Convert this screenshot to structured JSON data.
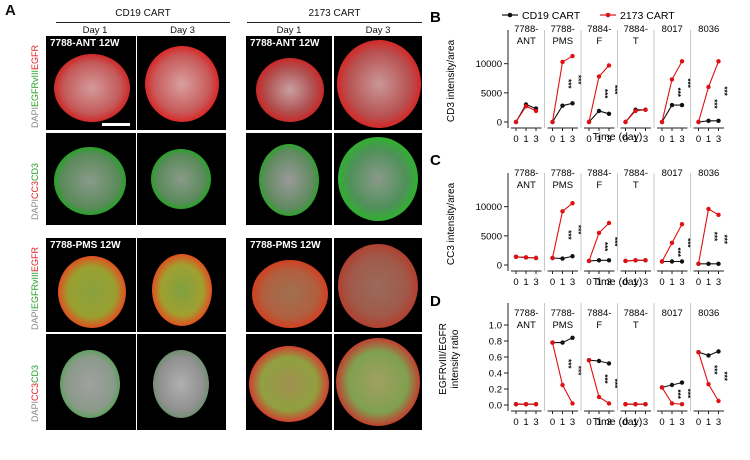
{
  "panel_a": {
    "letter": "A",
    "group_cd19": "CD19 CART",
    "group_2173": "2173 CART",
    "day1": "Day 1",
    "day3": "Day 3",
    "label_ant": "7788-ANT 12W",
    "label_pms": "7788-PMS 12W",
    "side1": {
      "p1": "DAPI",
      "p2": "EGFRvIII",
      "p3": "EGFR"
    },
    "side2": {
      "p1": "DAPI",
      "p2": "CC3",
      "p3": "CD3"
    },
    "colors": {
      "dapi": "#9a9a9a",
      "green": "#22b822",
      "red": "#e02020"
    }
  },
  "legend": {
    "cd19": "CD19 CART",
    "c2173": "2173 CART"
  },
  "colors": {
    "cd19": "#111111",
    "c2173": "#e01010"
  },
  "chart_data": [
    {
      "letter": "B",
      "type": "line",
      "ylabel": "CD3 intensity/area",
      "xlabel": "Time (day)",
      "ylim": [
        0,
        12000
      ],
      "yticks": [
        "0",
        "5000",
        "10000"
      ],
      "ytick_values": [
        0,
        5000,
        10000
      ],
      "x": [
        0,
        1,
        3
      ],
      "xtick_labels": [
        "0",
        "1",
        "3"
      ],
      "facets": [
        {
          "title": "7788-ANT",
          "cd19": [
            0,
            3000,
            2300
          ],
          "c2173": [
            0,
            2700,
            1900
          ],
          "stars": []
        },
        {
          "title": "7788-PMS",
          "cd19": [
            0,
            2800,
            3200
          ],
          "c2173": [
            0,
            10300,
            11300
          ],
          "stars": [
            "***",
            "***"
          ]
        },
        {
          "title": "7884-F",
          "cd19": [
            0,
            1900,
            1400
          ],
          "c2173": [
            0,
            7800,
            9700
          ],
          "stars": [
            "***",
            "***"
          ]
        },
        {
          "title": "7884-T",
          "cd19": [
            0,
            2100,
            2100
          ],
          "c2173": [
            0,
            1900,
            2100
          ],
          "stars": []
        },
        {
          "title": "8017",
          "cd19": [
            0,
            2900,
            2900
          ],
          "c2173": [
            0,
            7300,
            10400
          ],
          "stars": [
            "***",
            "***"
          ]
        },
        {
          "title": "8036",
          "cd19": [
            0,
            200,
            200
          ],
          "c2173": [
            0,
            6000,
            10400
          ],
          "stars": [
            "***",
            "***"
          ]
        }
      ]
    },
    {
      "letter": "C",
      "type": "line",
      "ylabel": "CC3 intensity/area",
      "xlabel": "Time (day)",
      "ylim": [
        0,
        12000
      ],
      "yticks": [
        "0",
        "5000",
        "10000"
      ],
      "ytick_values": [
        0,
        5000,
        10000
      ],
      "x": [
        0,
        1,
        3
      ],
      "xtick_labels": [
        "0",
        "1",
        "3"
      ],
      "facets": [
        {
          "title": "7788-ANT",
          "cd19": [
            1400,
            1300,
            1200
          ],
          "c2173": [
            1400,
            1300,
            1200
          ],
          "stars": []
        },
        {
          "title": "7788-PMS",
          "cd19": [
            1200,
            1100,
            1500
          ],
          "c2173": [
            1200,
            9200,
            10600
          ],
          "stars": [
            "***",
            "***"
          ]
        },
        {
          "title": "7884-F",
          "cd19": [
            700,
            800,
            800
          ],
          "c2173": [
            700,
            5500,
            7200
          ],
          "stars": [
            "***",
            "***"
          ]
        },
        {
          "title": "7884-T",
          "cd19": [
            700,
            800,
            800
          ],
          "c2173": [
            700,
            800,
            800
          ],
          "stars": []
        },
        {
          "title": "8017",
          "cd19": [
            600,
            600,
            600
          ],
          "c2173": [
            600,
            3800,
            7000
          ],
          "stars": [
            "***",
            "***"
          ]
        },
        {
          "title": "8036",
          "cd19": [
            200,
            200,
            200
          ],
          "c2173": [
            200,
            9600,
            8600
          ],
          "stars": [
            "***",
            "***"
          ]
        }
      ]
    },
    {
      "letter": "D",
      "type": "line",
      "ylabel": "EGFRvIII/EGFR",
      "ylabel2": "intensity ratio",
      "xlabel": "Time (day)",
      "ylim": [
        0,
        1.0
      ],
      "yticks": [
        "0.0",
        "0.2",
        "0.4",
        "0.6",
        "0.8",
        "1.0"
      ],
      "ytick_values": [
        0,
        0.2,
        0.4,
        0.6,
        0.8,
        1.0
      ],
      "x": [
        0,
        1,
        3
      ],
      "xtick_labels": [
        "0",
        "1",
        "3"
      ],
      "facets": [
        {
          "title": "7788-ANT",
          "cd19": [
            0.01,
            0.01,
            0.01
          ],
          "c2173": [
            0.01,
            0.01,
            0.01
          ],
          "stars": []
        },
        {
          "title": "7788-PMS",
          "cd19": [
            0.78,
            0.78,
            0.84
          ],
          "c2173": [
            0.78,
            0.25,
            0.02
          ],
          "stars": [
            "***",
            "***"
          ]
        },
        {
          "title": "7884-F",
          "cd19": [
            0.56,
            0.55,
            0.52
          ],
          "c2173": [
            0.56,
            0.1,
            0.02
          ],
          "stars": [
            "***",
            "***"
          ]
        },
        {
          "title": "7884-T",
          "cd19": [
            0.01,
            0.01,
            0.01
          ],
          "c2173": [
            0.01,
            0.01,
            0.01
          ],
          "stars": []
        },
        {
          "title": "8017",
          "cd19": [
            0.22,
            0.25,
            0.28
          ],
          "c2173": [
            0.22,
            0.02,
            0.01
          ],
          "stars": [
            "***",
            "***"
          ]
        },
        {
          "title": "8036",
          "cd19": [
            0.66,
            0.62,
            0.67
          ],
          "c2173": [
            0.66,
            0.26,
            0.05
          ],
          "stars": [
            "***",
            "***"
          ]
        }
      ]
    }
  ]
}
